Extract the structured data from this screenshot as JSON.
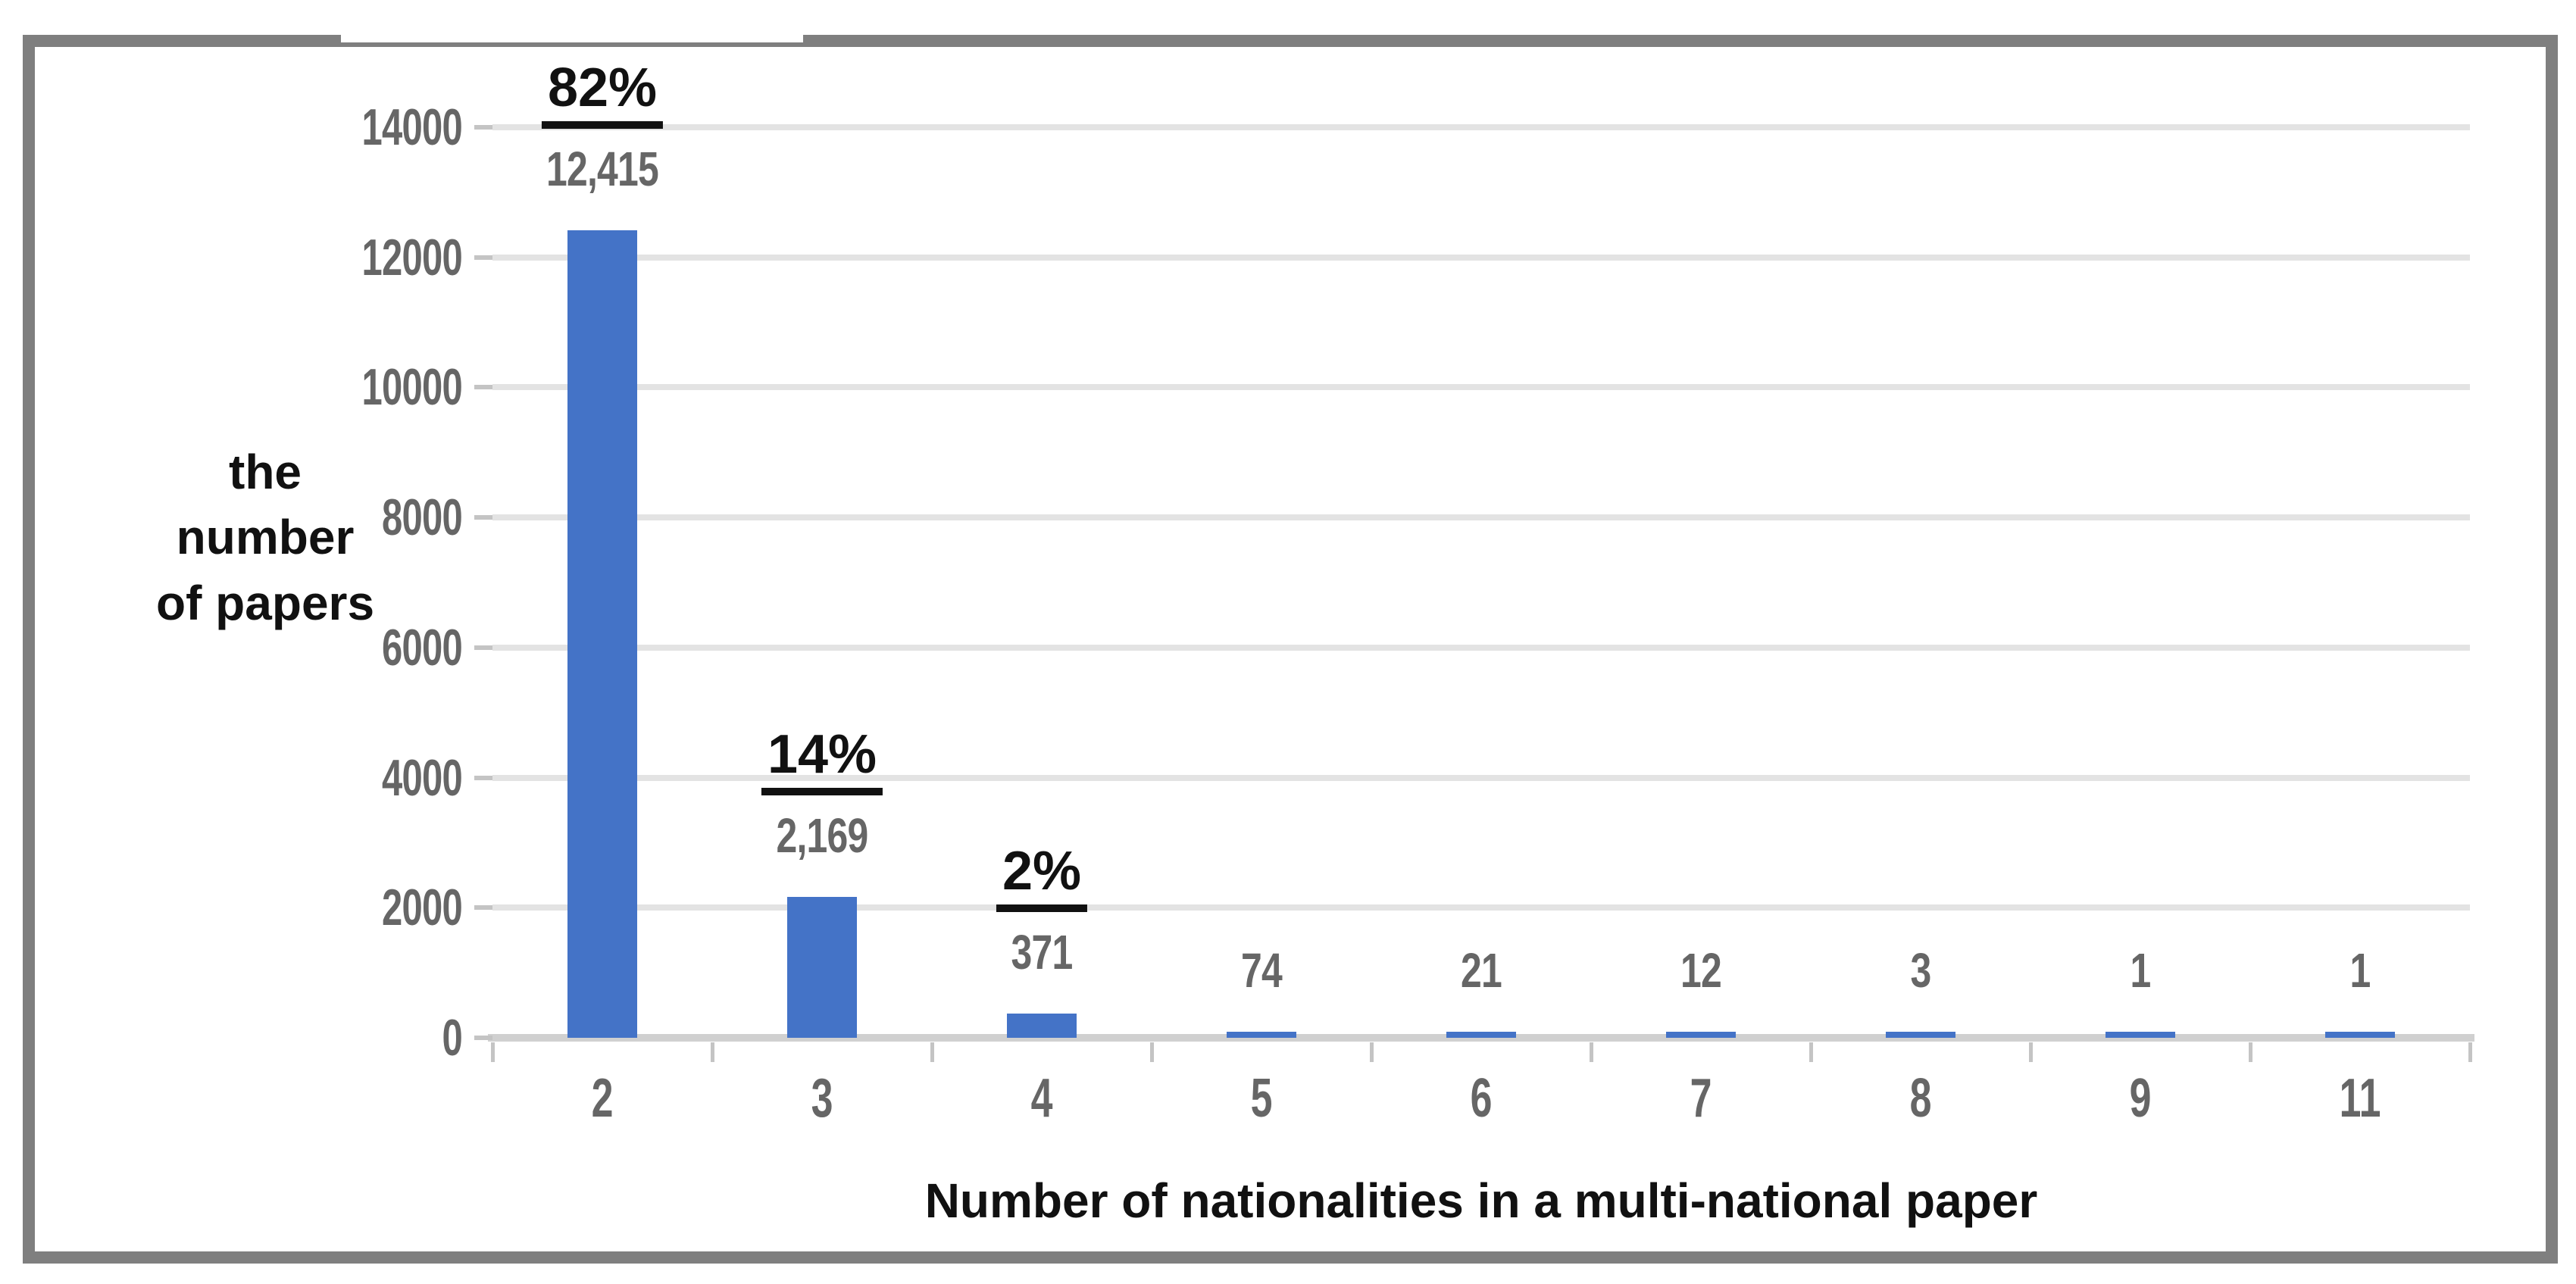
{
  "chart_data": {
    "type": "bar",
    "categories": [
      "2",
      "3",
      "4",
      "5",
      "6",
      "7",
      "8",
      "9",
      "11"
    ],
    "values": [
      12415,
      2169,
      371,
      74,
      21,
      12,
      3,
      1,
      1
    ],
    "value_labels": [
      "12,415",
      "2,169",
      "371",
      "74",
      "21",
      "12",
      "3",
      "1",
      "1"
    ],
    "percent_labels": [
      "82%",
      "14%",
      "2%",
      "",
      "",
      "",
      "",
      "",
      ""
    ],
    "xlabel": "Number of nationalities in a multi-national paper",
    "ylabel": "the\nnumber\nof papers",
    "ylim": [
      0,
      14000
    ],
    "yticks": [
      14000,
      12000,
      10000,
      8000,
      6000,
      4000,
      2000,
      0
    ],
    "ytick_labels": [
      "14000",
      "12000",
      "10000",
      "8000",
      "6000",
      "4000",
      "2000",
      "0"
    ],
    "grid": true,
    "legend": "none",
    "bar_color": "#4473C7",
    "text_gray": "#666666",
    "text_black": "#111111",
    "gridline_color": "#e3e3e3",
    "baseline_color": "#d0d0d0",
    "tick_color": "#c4c4c4",
    "border_color": "#7f7f7f"
  }
}
